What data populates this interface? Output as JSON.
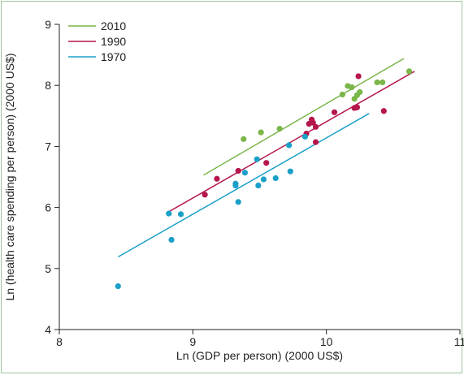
{
  "chart_data": {
    "type": "scatter",
    "xlabel": "Ln (GDP per person) (2000 US$)",
    "ylabel": "Ln (health care spending per person) (2000 US$)",
    "xlim": [
      8,
      11
    ],
    "ylim": [
      4,
      9
    ],
    "xticks": [
      "8",
      "9",
      "10",
      "11"
    ],
    "yticks": [
      "4",
      "5",
      "6",
      "7",
      "8",
      "9"
    ],
    "legend_position": "top-left",
    "grid": false,
    "series": [
      {
        "name": "2010",
        "color": "#7ab648",
        "points": [
          [
            9.38,
            7.12
          ],
          [
            9.51,
            7.23
          ],
          [
            9.65,
            7.29
          ],
          [
            10.12,
            7.85
          ],
          [
            10.16,
            7.99
          ],
          [
            10.19,
            7.97
          ],
          [
            10.21,
            7.78
          ],
          [
            10.23,
            7.84
          ],
          [
            10.25,
            7.89
          ],
          [
            10.38,
            8.05
          ],
          [
            10.42,
            8.05
          ],
          [
            10.62,
            8.23
          ]
        ],
        "trend": [
          [
            9.08,
            6.53
          ],
          [
            10.58,
            8.44
          ]
        ]
      },
      {
        "name": "1990",
        "color": "#b5164b",
        "points": [
          [
            9.09,
            6.21
          ],
          [
            9.18,
            6.47
          ],
          [
            9.34,
            6.6
          ],
          [
            9.55,
            6.73
          ],
          [
            9.85,
            7.21
          ],
          [
            9.87,
            7.37
          ],
          [
            9.89,
            7.44
          ],
          [
            9.9,
            7.39
          ],
          [
            9.92,
            7.32
          ],
          [
            9.92,
            7.07
          ],
          [
            10.06,
            7.56
          ],
          [
            10.21,
            7.63
          ],
          [
            10.23,
            7.64
          ],
          [
            10.24,
            8.15
          ],
          [
            10.43,
            7.58
          ]
        ],
        "trend": [
          [
            8.82,
            5.93
          ],
          [
            10.66,
            8.23
          ]
        ]
      },
      {
        "name": "1970",
        "color": "#1aa0c8",
        "points": [
          [
            8.44,
            4.71
          ],
          [
            8.82,
            5.9
          ],
          [
            8.84,
            5.47
          ],
          [
            8.91,
            5.89
          ],
          [
            9.32,
            6.39
          ],
          [
            9.32,
            6.36
          ],
          [
            9.34,
            6.09
          ],
          [
            9.39,
            6.57
          ],
          [
            9.48,
            6.79
          ],
          [
            9.49,
            6.36
          ],
          [
            9.53,
            6.46
          ],
          [
            9.62,
            6.48
          ],
          [
            9.72,
            7.02
          ],
          [
            9.73,
            6.59
          ],
          [
            9.84,
            7.16
          ]
        ],
        "trend": [
          [
            8.44,
            5.19
          ],
          [
            10.32,
            7.54
          ]
        ]
      }
    ]
  }
}
